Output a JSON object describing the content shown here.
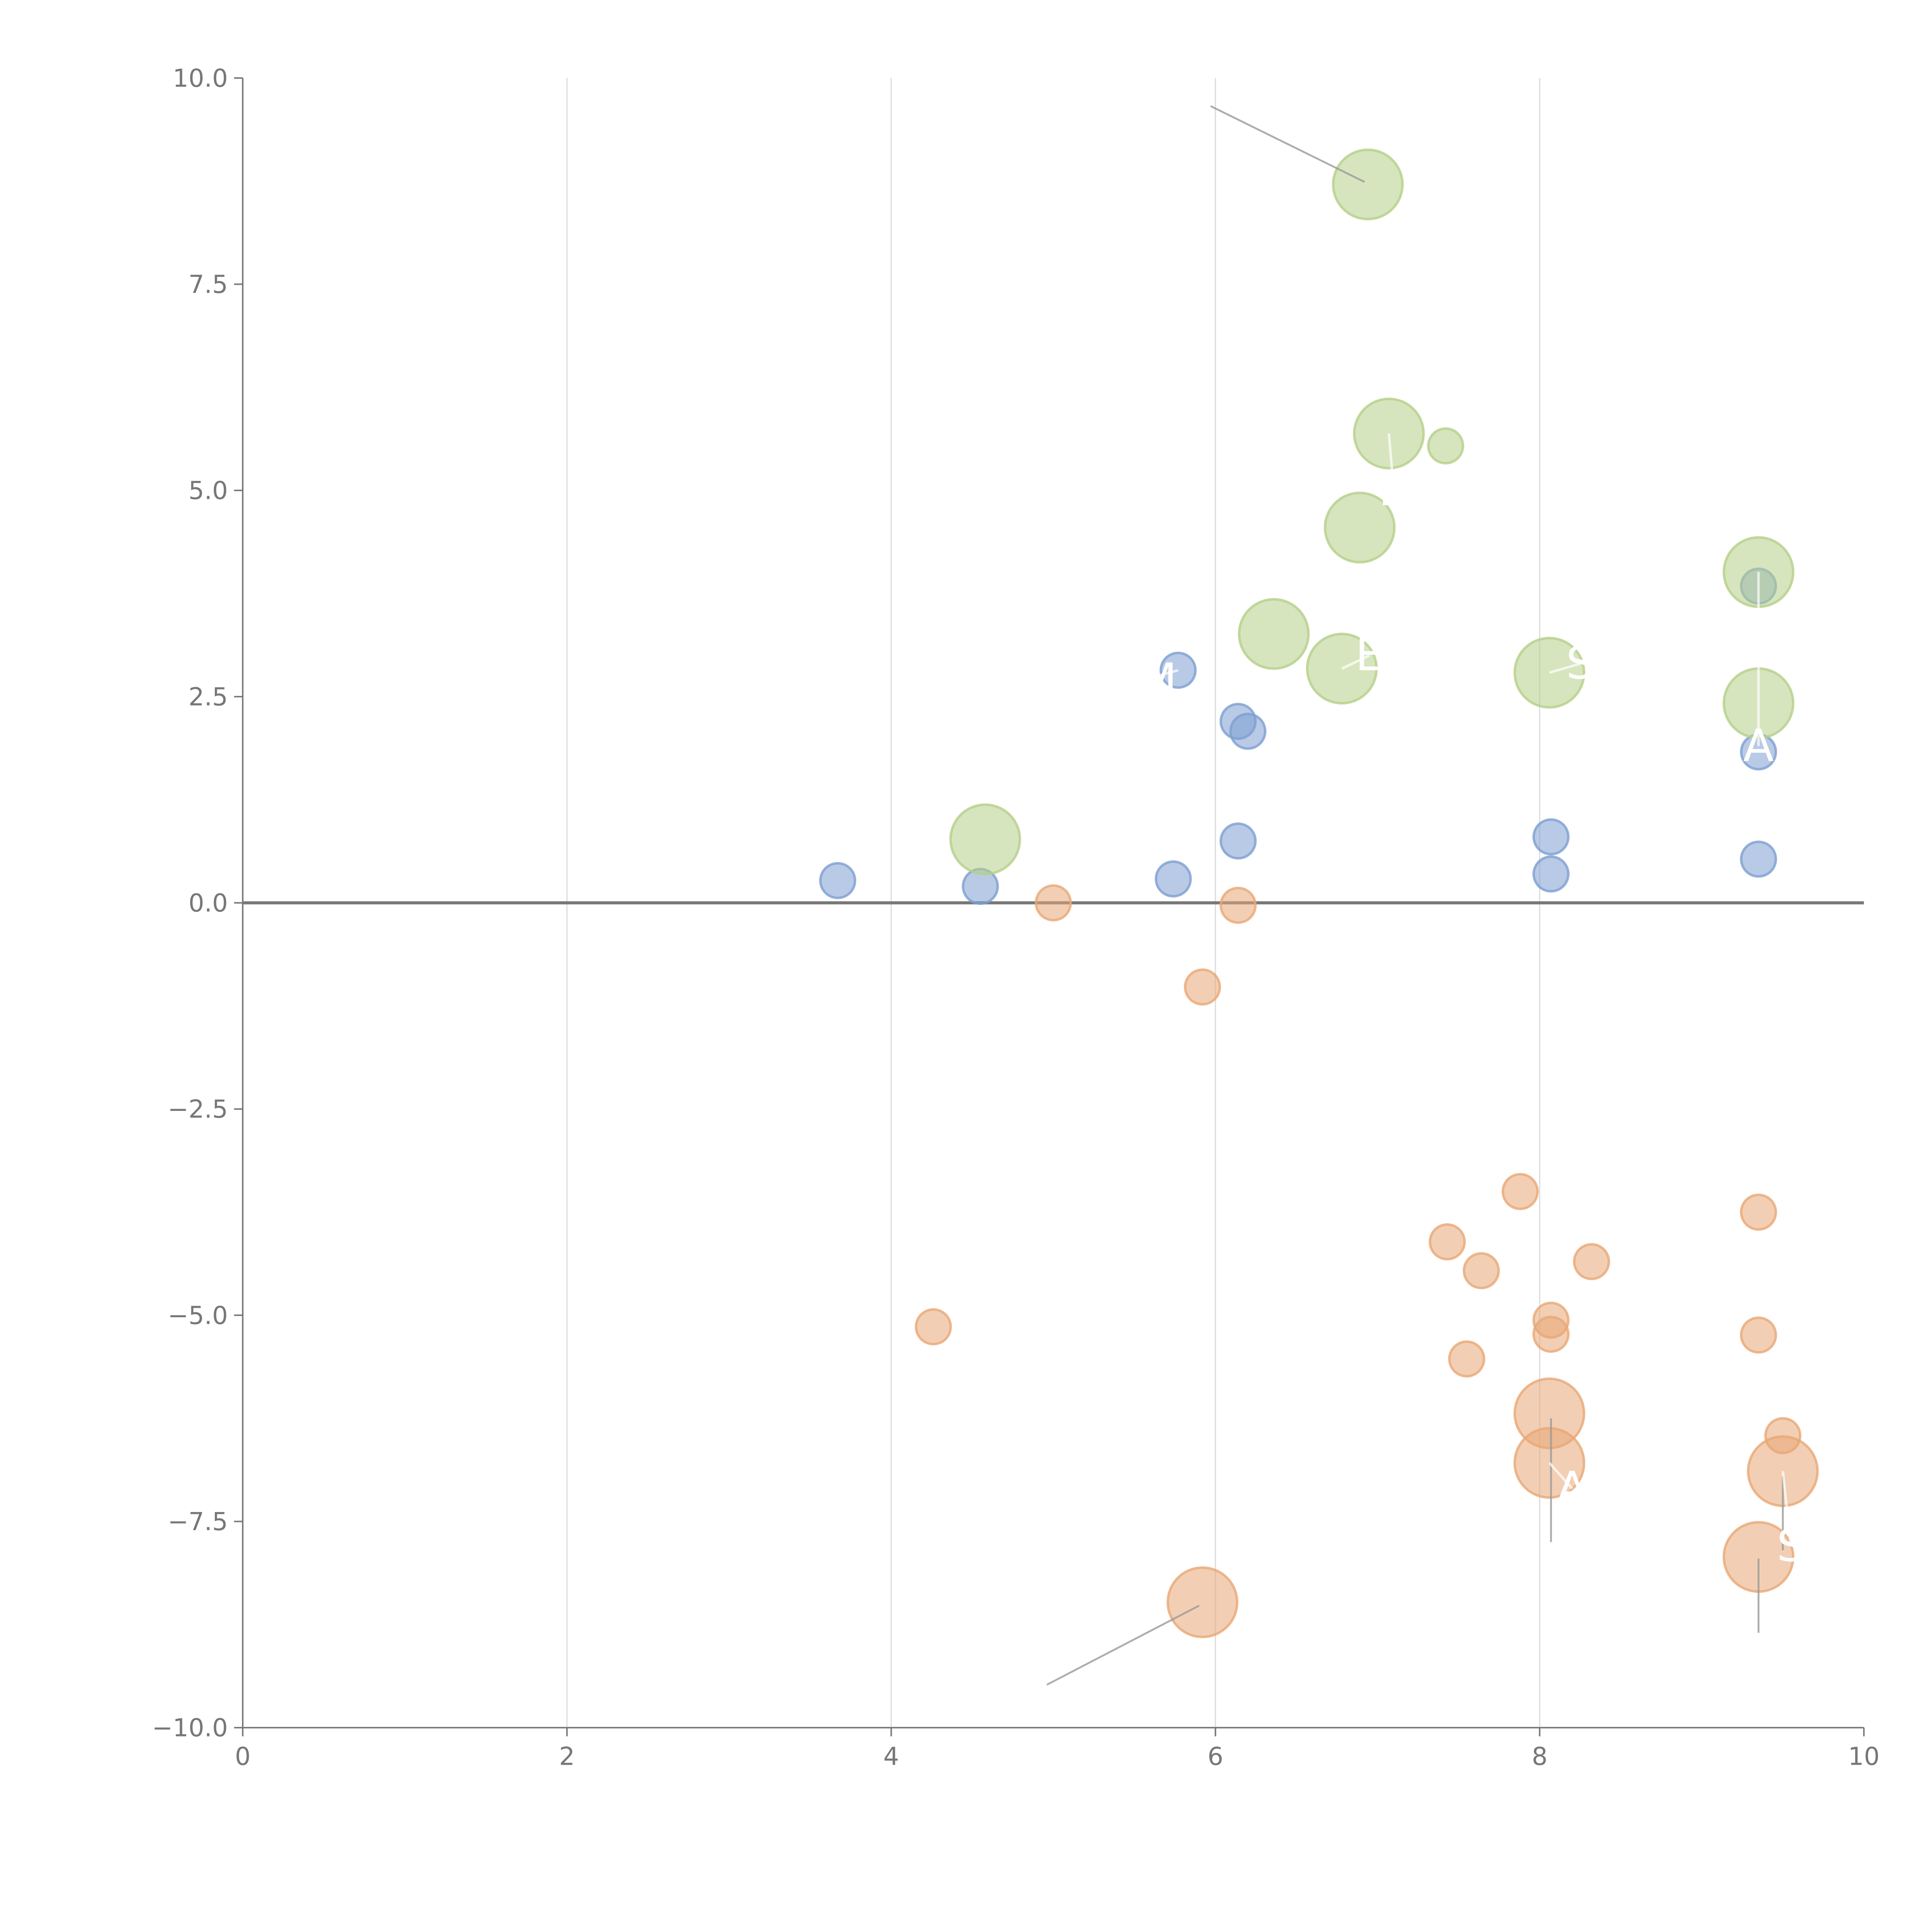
{
  "chart_data": {
    "type": "scatter",
    "title": "",
    "xlabel": "",
    "ylabel": "",
    "xlim": [
      0,
      10
    ],
    "ylim": [
      -10,
      10
    ],
    "xticks": [
      "0",
      "2",
      "4",
      "6",
      "8",
      "10"
    ],
    "yticks": [
      "−10.0",
      "−7.5",
      "−5.0",
      "−2.5",
      "0.0",
      "2.5",
      "5.0",
      "7.5",
      "10.0"
    ],
    "grid": "vertical",
    "reference_line_y": 0,
    "series": [
      {
        "name": "blue",
        "color": "#7d9fd1",
        "points": [
          {
            "x": 3.67,
            "y": 0.27,
            "size": 1
          },
          {
            "x": 4.55,
            "y": 0.2,
            "size": 1
          },
          {
            "x": 5.74,
            "y": 0.29,
            "size": 1
          },
          {
            "x": 5.77,
            "y": 2.82,
            "size": 1
          },
          {
            "x": 6.14,
            "y": 2.2,
            "size": 1
          },
          {
            "x": 6.2,
            "y": 2.08,
            "size": 1
          },
          {
            "x": 6.14,
            "y": 0.75,
            "size": 1
          },
          {
            "x": 8.07,
            "y": 0.8,
            "size": 1
          },
          {
            "x": 8.07,
            "y": 0.35,
            "size": 1
          },
          {
            "x": 9.35,
            "y": 3.84,
            "size": 1
          },
          {
            "x": 9.35,
            "y": 1.83,
            "size": 1
          },
          {
            "x": 9.35,
            "y": 0.53,
            "size": 1
          }
        ]
      },
      {
        "name": "green",
        "color": "#b5cf88",
        "points": [
          {
            "x": 6.94,
            "y": 8.71,
            "size": 2
          },
          {
            "x": 7.07,
            "y": 5.69,
            "size": 2
          },
          {
            "x": 7.42,
            "y": 5.54,
            "size": 1
          },
          {
            "x": 6.89,
            "y": 4.55,
            "size": 2
          },
          {
            "x": 6.36,
            "y": 3.26,
            "size": 2
          },
          {
            "x": 6.78,
            "y": 2.84,
            "size": 2
          },
          {
            "x": 8.06,
            "y": 2.79,
            "size": 2
          },
          {
            "x": 9.35,
            "y": 4.01,
            "size": 2
          },
          {
            "x": 9.35,
            "y": 2.42,
            "size": 2
          },
          {
            "x": 4.58,
            "y": 0.77,
            "size": 2
          }
        ]
      },
      {
        "name": "orange",
        "color": "#e8a876",
        "points": [
          {
            "x": 5.0,
            "y": 0.0,
            "size": 1
          },
          {
            "x": 6.14,
            "y": -0.03,
            "size": 1
          },
          {
            "x": 5.92,
            "y": -1.02,
            "size": 1
          },
          {
            "x": 7.88,
            "y": -3.5,
            "size": 1
          },
          {
            "x": 7.43,
            "y": -4.11,
            "size": 1
          },
          {
            "x": 7.64,
            "y": -4.46,
            "size": 1
          },
          {
            "x": 8.32,
            "y": -4.35,
            "size": 1
          },
          {
            "x": 9.35,
            "y": -3.75,
            "size": 1
          },
          {
            "x": 4.26,
            "y": -5.14,
            "size": 1
          },
          {
            "x": 8.07,
            "y": -5.06,
            "size": 1
          },
          {
            "x": 8.07,
            "y": -5.23,
            "size": 1
          },
          {
            "x": 9.35,
            "y": -5.24,
            "size": 1
          },
          {
            "x": 7.55,
            "y": -5.53,
            "size": 1
          },
          {
            "x": 9.5,
            "y": -6.46,
            "size": 1
          },
          {
            "x": 8.06,
            "y": -6.19,
            "size": 2
          },
          {
            "x": 8.06,
            "y": -6.79,
            "size": 2
          },
          {
            "x": 9.5,
            "y": -6.89,
            "size": 2
          },
          {
            "x": 9.35,
            "y": -7.93,
            "size": 2
          },
          {
            "x": 5.92,
            "y": -8.48,
            "size": 2
          }
        ]
      }
    ],
    "annotations": [
      {
        "text": "AM",
        "x": 5.55,
        "y": 2.7,
        "from": [
          5.77,
          2.82
        ]
      },
      {
        "text": "B",
        "x": 7.1,
        "y": 5.0,
        "from": [
          7.07,
          5.69
        ]
      },
      {
        "text": "E",
        "x": 6.95,
        "y": 3.0,
        "from": [
          6.78,
          2.84
        ]
      },
      {
        "text": "S",
        "x": 8.25,
        "y": 2.9,
        "from": [
          8.06,
          2.79
        ]
      },
      {
        "text": "A",
        "x": 9.35,
        "y": 1.9,
        "from": [
          9.35,
          4.01
        ]
      },
      {
        "text": "A",
        "x": 8.2,
        "y": -7.1,
        "from": [
          8.06,
          -6.79
        ]
      },
      {
        "text": "S",
        "x": 9.55,
        "y": -7.8,
        "from": [
          9.5,
          -6.89
        ]
      }
    ],
    "leaders": [
      {
        "from": [
          6.92,
          8.74
        ],
        "to": [
          5.97,
          9.66
        ]
      },
      {
        "from": [
          5.9,
          -8.52
        ],
        "to": [
          4.96,
          -9.48
        ]
      },
      {
        "from": [
          8.07,
          -6.25
        ],
        "to": [
          8.07,
          -7.75
        ]
      },
      {
        "from": [
          9.5,
          -6.95
        ],
        "to": [
          9.5,
          -7.85
        ]
      },
      {
        "from": [
          9.35,
          -7.95
        ],
        "to": [
          9.35,
          -8.85
        ]
      }
    ]
  }
}
